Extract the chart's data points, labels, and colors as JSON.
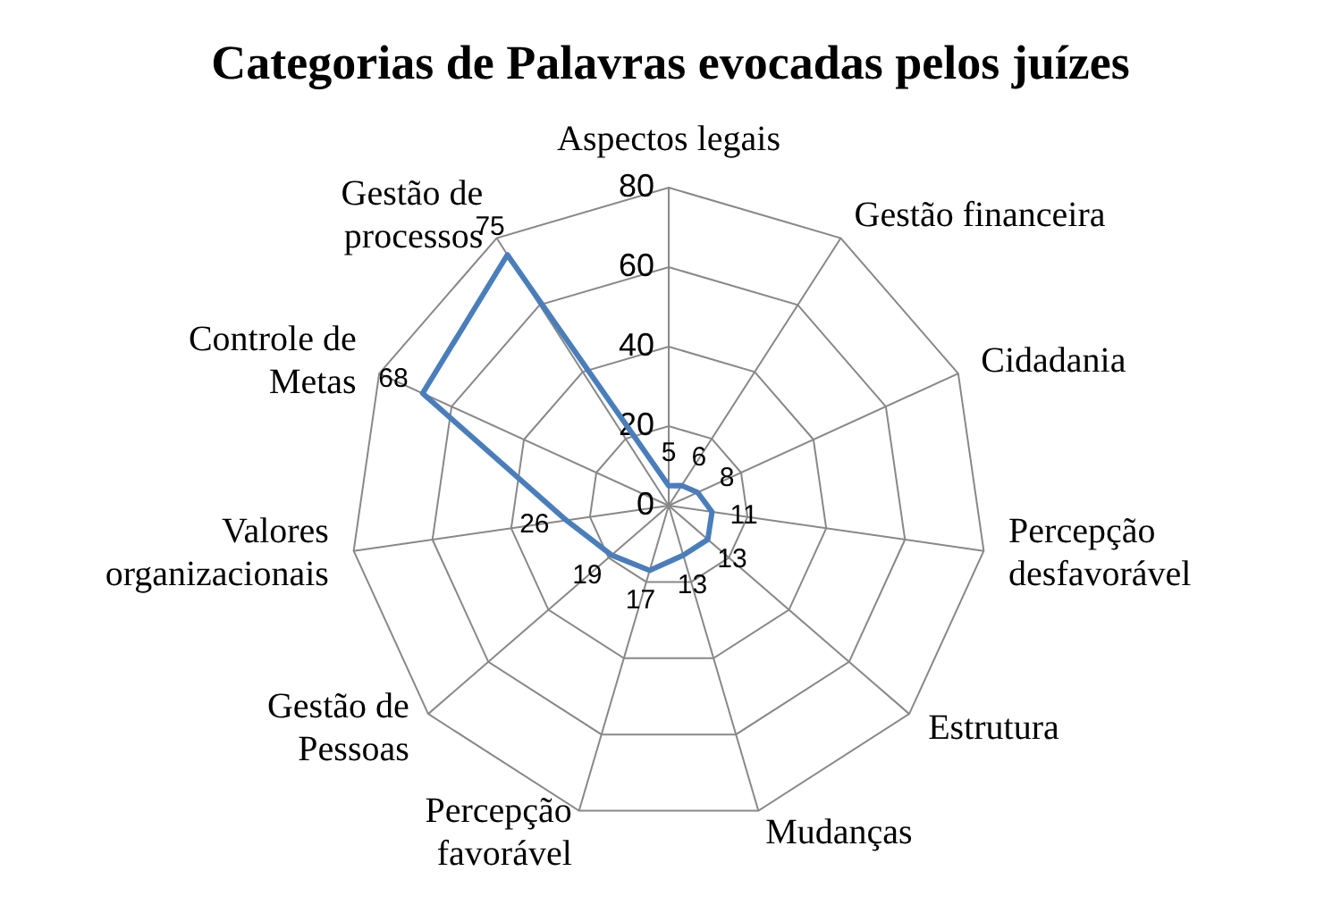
{
  "chart_data": {
    "type": "radar",
    "title": "Categorias  de Palavras  evocadas pelos juízes",
    "categories": [
      "Aspectos legais",
      "Gestão financeira",
      "Cidadania",
      "Percepção desfavorável",
      "Estrutura",
      "Mudanças",
      "Percepção favorável",
      "Gestão de Pessoas",
      "Valores organizacionais",
      "Controle de Metas",
      "Gestão de processos"
    ],
    "series": [
      {
        "color": "#4a7ebb",
        "values": [
          5,
          6,
          8,
          11,
          13,
          13,
          17,
          19,
          26,
          68,
          75
        ]
      }
    ],
    "ylim": [
      0,
      80
    ],
    "yticks": [
      0,
      20,
      40,
      60,
      80
    ],
    "grid": true,
    "data_labels": true
  }
}
